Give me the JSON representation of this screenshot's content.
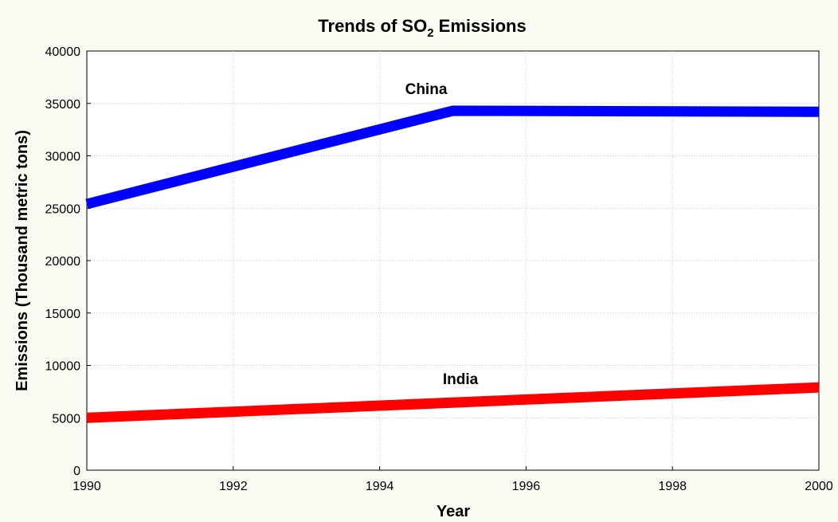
{
  "chart_data": {
    "type": "line",
    "title": {
      "prefix": "Trends of SO",
      "subscript": "2",
      "suffix": " Emissions"
    },
    "xlabel": "Year",
    "ylabel": "Emissions (Thousand metric tons)",
    "xlim": [
      1990,
      2000
    ],
    "ylim": [
      0,
      40000
    ],
    "xticks": [
      1990,
      1992,
      1994,
      1996,
      1998,
      2000
    ],
    "yticks": [
      0,
      5000,
      10000,
      15000,
      20000,
      25000,
      30000,
      35000,
      40000
    ],
    "grid": true,
    "series": [
      {
        "name": "China",
        "color": "#0000ff",
        "points": [
          {
            "x": 1990,
            "y": 25400
          },
          {
            "x": 1995,
            "y": 34300
          },
          {
            "x": 2000,
            "y": 34200
          }
        ]
      },
      {
        "name": "India",
        "color": "#ff0000",
        "points": [
          {
            "x": 1990,
            "y": 5000
          },
          {
            "x": 2000,
            "y": 7900
          }
        ]
      }
    ]
  }
}
